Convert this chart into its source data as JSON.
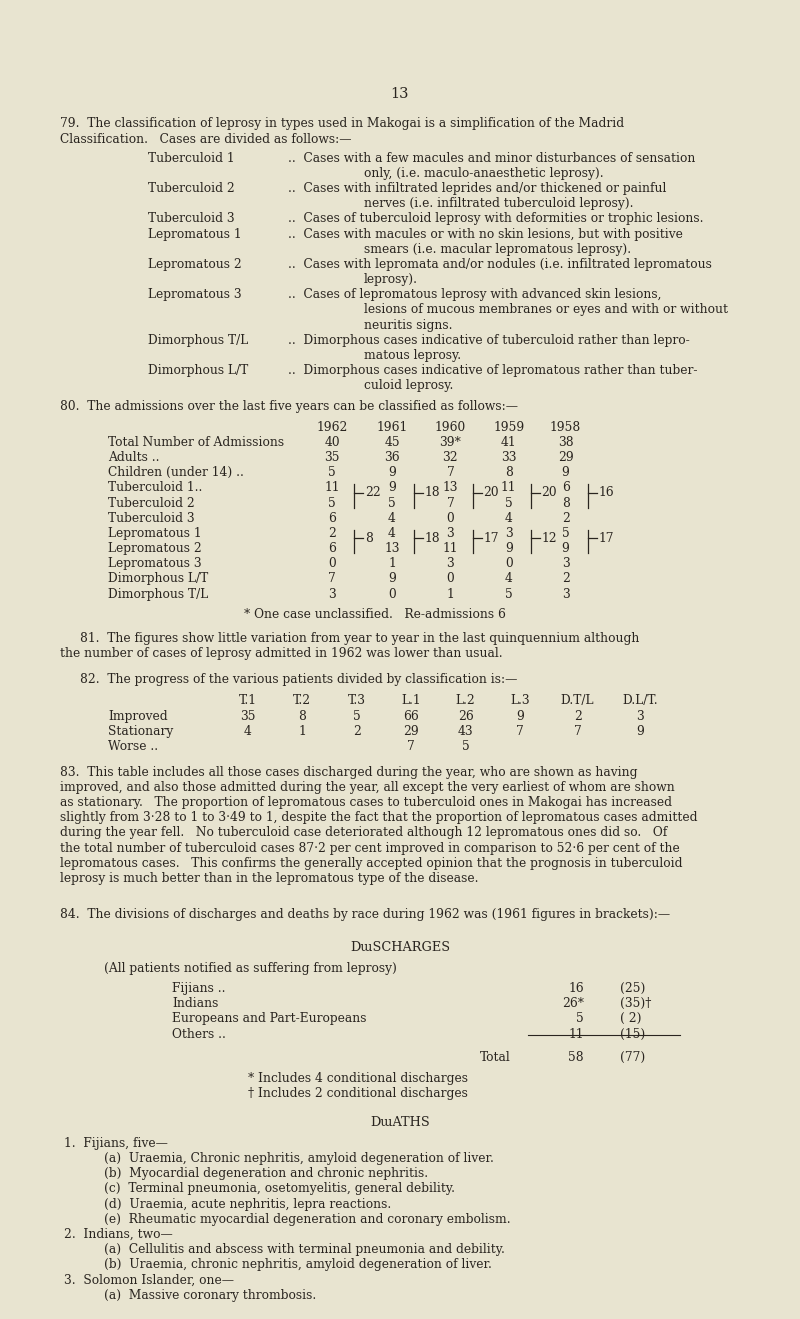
{
  "bg_color": "#e8e4d0",
  "text_color": "#2a2520",
  "page_number": "13",
  "font_family": "serif",
  "body_size": 8.8,
  "small_size": 8.2,
  "para79_header": [
    "79.  The classification of leprosy in types used in Makogai is a simplification of the Madrid",
    "Classification.   Cases are divided as follows:—"
  ],
  "classification_entries": [
    {
      "label": "Tuberculoid 1",
      "line1": "..  Cases with a few macules and minor disturbances of sensation",
      "cont": [
        "only, (i.e. maculo-anaesthetic leprosy)."
      ]
    },
    {
      "label": "Tuberculoid 2",
      "line1": "..  Cases with infiltrated leprides and/or thickened or painful",
      "cont": [
        "nerves (i.e. infiltrated tuberculoid leprosy)."
      ]
    },
    {
      "label": "Tuberculoid 3",
      "line1": "..  Cases of tuberculoid leprosy with deformities or trophic lesions.",
      "cont": []
    },
    {
      "label": "Lepromatous 1",
      "line1": "..  Cases with macules or with no skin lesions, but with positive",
      "cont": [
        "smears (i.e. macular lepromatous leprosy)."
      ]
    },
    {
      "label": "Lepromatous 2",
      "line1": "..  Cases with lepromata and/or nodules (i.e. infiltrated lepromatous",
      "cont": [
        "leprosy)."
      ]
    },
    {
      "label": "Lepromatous 3",
      "line1": "..  Cases of lepromatous leprosy with advanced skin lesions,",
      "cont": [
        "lesions of mucous membranes or eyes and with or without",
        "neuritis signs."
      ]
    },
    {
      "label": "Dimorphous T/L",
      "line1": "..  Dimorphous cases indicative of tuberculoid rather than lepro-",
      "cont": [
        "matous leprosy."
      ]
    },
    {
      "label": "Dimorphous L/T",
      "line1": "..  Dimorphous cases indicative of lepromatous rather than tuber-",
      "cont": [
        "culoid leprosy."
      ]
    }
  ],
  "para80_header": "80.  The admissions over the last five years can be classified as follows:—",
  "table1_years": [
    "1962",
    "1961",
    "1960",
    "1959",
    "1958"
  ],
  "table1_rows": [
    [
      "Total Number of Admissions",
      "40",
      "45",
      "39*",
      "41",
      "38"
    ],
    [
      "Adults ..",
      "35",
      "36",
      "32",
      "33",
      "29"
    ],
    [
      "Children (under 14) ..",
      "5",
      "9",
      "7",
      "8",
      "9"
    ],
    [
      "Tuberculoid 1..",
      "11",
      "9",
      "13",
      "11",
      "6"
    ],
    [
      "Tuberculoid 2",
      "5",
      "5",
      "7",
      "5",
      "8"
    ],
    [
      "Tuberculoid 3",
      "6",
      "4",
      "0",
      "4",
      "2"
    ],
    [
      "Lepromatous 1",
      "2",
      "4",
      "3",
      "3",
      "5"
    ],
    [
      "Lepromatous 2",
      "6",
      "13",
      "11",
      "9",
      "9"
    ],
    [
      "Lepromatous 3",
      "0",
      "1",
      "3",
      "0",
      "3"
    ],
    [
      "Dimorphous L/T",
      "7",
      "9",
      "0",
      "4",
      "2"
    ],
    [
      "Dimorphous T/L",
      "3",
      "0",
      "1",
      "5",
      "3"
    ]
  ],
  "brace1_totals": [
    "22",
    "18",
    "20",
    "20",
    "16"
  ],
  "brace2_totals": [
    "8",
    "18",
    "17",
    "12",
    "17"
  ],
  "footnote": "* One case unclassified.   Re-admissions 6",
  "para81": [
    "81.  The figures show little variation from year to year in the last quinquennium although",
    "the number of cases of leprosy admitted in 1962 was lower than usual."
  ],
  "para82_header": "82.  The progress of the various patients divided by classification is:—",
  "table2_cols": [
    "T.1",
    "T.2",
    "T.3",
    "L.1",
    "L.2",
    "L.3",
    "D.T/L",
    "D.L/T."
  ],
  "table2_rows": [
    [
      "Improved",
      "35",
      "8",
      "5",
      "66",
      "26",
      "9",
      "2",
      "3"
    ],
    [
      "Stationary",
      "4",
      "1",
      "2",
      "29",
      "43",
      "7",
      "7",
      "9"
    ],
    [
      "Worse ..",
      "",
      "",
      "",
      "7",
      "5",
      "",
      "",
      ""
    ]
  ],
  "para83": [
    "83.  This table includes all those cases discharged during the year, who are shown as having",
    "improved, and also those admitted during the year, all except the very earliest of whom are shown",
    "as stationary.   The proportion of lepromatous cases to tuberculoid ones in Makogai has increased",
    "slightly from 3·28 to 1 to 3·49 to 1, despite the fact that the proportion of lepromatous cases admitted",
    "during the year fell.   No tuberculoid case deteriorated although 12 lepromatous ones did so.   Of",
    "the total number of tuberculoid cases 87·2 per cent improved in comparison to 52·6 per cent of the",
    "lepromatous cases.   This confirms the generally accepted opinion that the prognosis in tuberculoid",
    "leprosy is much better than in the lepromatous type of the disease."
  ],
  "para84": "84.  The divisions of discharges and deaths by race during 1962 was (1961 figures in brackets):—",
  "discharges_title": "Discharges",
  "discharges_subtitle": "(All patients notified as suffering from leprosy)",
  "discharge_rows": [
    [
      "Fijians ..",
      "16",
      "(25)"
    ],
    [
      "Indians",
      "26*",
      "(35)†"
    ],
    [
      "Europeans and Part-Europeans",
      "5",
      "( 2)"
    ],
    [
      "Others ..",
      "11",
      "(15)"
    ]
  ],
  "discharge_total": [
    "Total",
    "58",
    "(77)"
  ],
  "discharge_footnotes": [
    "* Includes 4 conditional discharges",
    "† Includes 2 conditional discharges"
  ],
  "deaths_title": "Deaths",
  "deaths": [
    {
      "indent": 0,
      "text": "1.  Fijians, five—"
    },
    {
      "indent": 1,
      "text": "(a)  Uraemia, Chronic nephritis, amyloid degeneration of liver."
    },
    {
      "indent": 1,
      "text": "(b)  Myocardial degeneration and chronic nephritis."
    },
    {
      "indent": 1,
      "text": "(c)  Terminal pneumonia, osetomyelitis, general debility."
    },
    {
      "indent": 1,
      "text": "(d)  Uraemia, acute nephritis, lepra reactions."
    },
    {
      "indent": 1,
      "text": "(e)  Rheumatic myocardial degeneration and coronary embolism."
    },
    {
      "indent": 0,
      "text": "2.  Indians, two—"
    },
    {
      "indent": 1,
      "text": "(a)  Cellulitis and abscess with terminal pneumonia and debility."
    },
    {
      "indent": 1,
      "text": "(b)  Uraemia, chronic nephritis, amyloid degeneration of liver."
    },
    {
      "indent": 0,
      "text": "3.  Solomon Islander, one—"
    },
    {
      "indent": 1,
      "text": "(a)  Massive coronary thrombosis."
    }
  ]
}
